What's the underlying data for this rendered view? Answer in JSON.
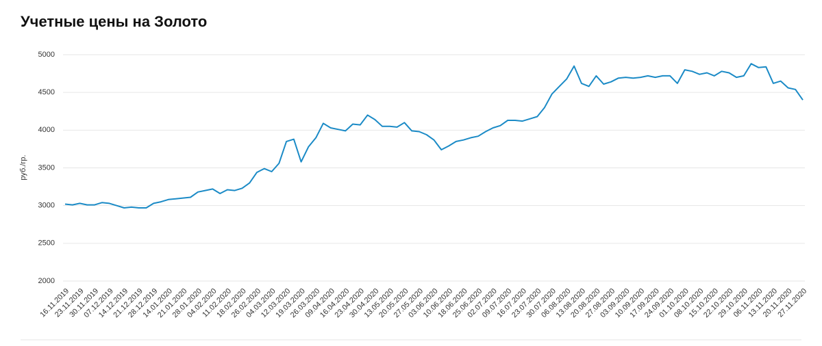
{
  "chart_data": {
    "type": "line",
    "title": "Учетные цены на Золото",
    "y_label": "руб./гр.",
    "categories": [
      "16.11.2019",
      null,
      "23.11.2019",
      null,
      "30.11.2019",
      null,
      "07.12.2019",
      null,
      "14.12.2019",
      null,
      "21.12.2019",
      null,
      "28.12.2019",
      null,
      "14.01.2020",
      null,
      "21.01.2020",
      null,
      "28.01.2020",
      null,
      "04.02.2020",
      null,
      "11.02.2020",
      null,
      "18.02.2020",
      null,
      "26.02.2020",
      null,
      "04.03.2020",
      null,
      "12.03.2020",
      null,
      "19.03.2020",
      null,
      "26.03.2020",
      null,
      "09.04.2020",
      null,
      "16.04.2020",
      null,
      "23.04.2020",
      null,
      "30.04.2020",
      null,
      "13.05.2020",
      null,
      "20.05.2020",
      null,
      "27.05.2020",
      null,
      "03.06.2020",
      null,
      "10.06.2020",
      null,
      "18.06.2020",
      null,
      "25.06.2020",
      null,
      "02.07.2020",
      null,
      "09.07.2020",
      null,
      "16.07.2020",
      null,
      "23.07.2020",
      null,
      "30.07.2020",
      null,
      "06.08.2020",
      null,
      "13.08.2020",
      null,
      "20.08.2020",
      null,
      "27.08.2020",
      null,
      "03.09.2020",
      null,
      "10.09.2020",
      null,
      "17.09.2020",
      null,
      "24.09.2020",
      null,
      "01.10.2020",
      null,
      "08.10.2020",
      null,
      "15.10.2020",
      null,
      "22.10.2020",
      null,
      "29.10.2020",
      null,
      "06.11.2020",
      null,
      "13.11.2020",
      null,
      "20.11.2020",
      null,
      "27.11.2020"
    ],
    "series": [
      {
        "name": "Золото",
        "color": "#1a8ac6",
        "values": [
          3020,
          3010,
          3030,
          3010,
          3010,
          3040,
          3030,
          3000,
          2970,
          2980,
          2970,
          2970,
          3030,
          3050,
          3080,
          3090,
          3100,
          3110,
          3180,
          3200,
          3220,
          3160,
          3210,
          3200,
          3230,
          3300,
          3440,
          3490,
          3450,
          3560,
          3850,
          3880,
          3580,
          3780,
          3900,
          4090,
          4030,
          4010,
          3990,
          4080,
          4070,
          4200,
          4140,
          4050,
          4050,
          4040,
          4100,
          3990,
          3980,
          3940,
          3870,
          3740,
          3790,
          3850,
          3870,
          3900,
          3920,
          3980,
          4030,
          4060,
          4130,
          4130,
          4120,
          4150,
          4180,
          4300,
          4480,
          4580,
          4680,
          4850,
          4620,
          4580,
          4720,
          4610,
          4640,
          4690,
          4700,
          4690,
          4700,
          4720,
          4700,
          4720,
          4720,
          4620,
          4800,
          4780,
          4740,
          4760,
          4720,
          4780,
          4760,
          4700,
          4720,
          4880,
          4830,
          4840,
          4620,
          4650,
          4560,
          4540,
          4400
        ]
      }
    ],
    "ylim": [
      2000,
      5000
    ],
    "yticks": [
      2000,
      2500,
      3000,
      3500,
      4000,
      4500,
      5000
    ],
    "grid": true
  }
}
